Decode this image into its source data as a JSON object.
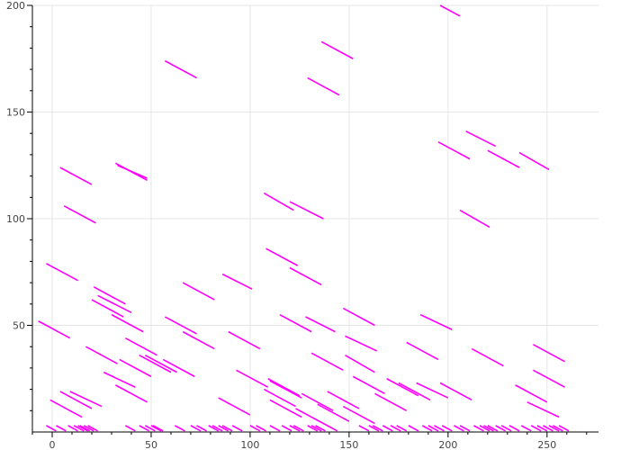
{
  "chart_data": {
    "type": "segment",
    "title": "",
    "xlabel": "",
    "ylabel": "",
    "xlim": [
      -10,
      276
    ],
    "ylim": [
      0,
      200
    ],
    "x_ticks": [
      0,
      50,
      100,
      150,
      200,
      250
    ],
    "y_ticks": [
      50,
      100,
      150,
      200
    ],
    "x_tick_labels": [
      "0",
      "50",
      "100",
      "150",
      "200",
      "250"
    ],
    "y_tick_labels": [
      "50",
      "100",
      "150",
      "200"
    ],
    "grid": true,
    "color": "#ff00ff",
    "segments": [
      {
        "x0": 196,
        "y0": 200,
        "x1": 206,
        "y1": 195
      },
      {
        "x0": 136,
        "y0": 183,
        "x1": 152,
        "y1": 175
      },
      {
        "x0": 57,
        "y0": 174,
        "x1": 73,
        "y1": 166
      },
      {
        "x0": 129,
        "y0": 166,
        "x1": 145,
        "y1": 158
      },
      {
        "x0": 209,
        "y0": 141,
        "x1": 224,
        "y1": 134
      },
      {
        "x0": 195,
        "y0": 136,
        "x1": 211,
        "y1": 128
      },
      {
        "x0": 220,
        "y0": 132,
        "x1": 236,
        "y1": 124
      },
      {
        "x0": 236,
        "y0": 131,
        "x1": 251,
        "y1": 123
      },
      {
        "x0": 32,
        "y0": 126,
        "x1": 48,
        "y1": 118
      },
      {
        "x0": 33,
        "y0": 125,
        "x1": 48,
        "y1": 119
      },
      {
        "x0": 4,
        "y0": 124,
        "x1": 20,
        "y1": 116
      },
      {
        "x0": 107,
        "y0": 112,
        "x1": 122,
        "y1": 104
      },
      {
        "x0": 120,
        "y0": 108,
        "x1": 137,
        "y1": 100
      },
      {
        "x0": 6,
        "y0": 106,
        "x1": 22,
        "y1": 98
      },
      {
        "x0": 206,
        "y0": 104,
        "x1": 221,
        "y1": 96
      },
      {
        "x0": 108,
        "y0": 86,
        "x1": 124,
        "y1": 78
      },
      {
        "x0": -3,
        "y0": 79,
        "x1": 13,
        "y1": 71
      },
      {
        "x0": 120,
        "y0": 77,
        "x1": 136,
        "y1": 69
      },
      {
        "x0": 86,
        "y0": 74,
        "x1": 101,
        "y1": 67
      },
      {
        "x0": 66,
        "y0": 70,
        "x1": 82,
        "y1": 62
      },
      {
        "x0": 21,
        "y0": 68,
        "x1": 37,
        "y1": 60
      },
      {
        "x0": 23,
        "y0": 64,
        "x1": 40,
        "y1": 56
      },
      {
        "x0": 20,
        "y0": 62,
        "x1": 36,
        "y1": 54
      },
      {
        "x0": 147,
        "y0": 58,
        "x1": 163,
        "y1": 50
      },
      {
        "x0": 186,
        "y0": 55,
        "x1": 202,
        "y1": 48
      },
      {
        "x0": 30,
        "y0": 55,
        "x1": 46,
        "y1": 47
      },
      {
        "x0": 115,
        "y0": 55,
        "x1": 131,
        "y1": 47
      },
      {
        "x0": 128,
        "y0": 54,
        "x1": 143,
        "y1": 47
      },
      {
        "x0": 57,
        "y0": 54,
        "x1": 73,
        "y1": 46
      },
      {
        "x0": -7,
        "y0": 52,
        "x1": 9,
        "y1": 44
      },
      {
        "x0": 66,
        "y0": 47,
        "x1": 82,
        "y1": 39
      },
      {
        "x0": 89,
        "y0": 47,
        "x1": 105,
        "y1": 39
      },
      {
        "x0": 148,
        "y0": 45,
        "x1": 164,
        "y1": 38
      },
      {
        "x0": 37,
        "y0": 44,
        "x1": 53,
        "y1": 36
      },
      {
        "x0": 179,
        "y0": 42,
        "x1": 195,
        "y1": 34
      },
      {
        "x0": 243,
        "y0": 41,
        "x1": 259,
        "y1": 33
      },
      {
        "x0": 17,
        "y0": 40,
        "x1": 33,
        "y1": 32
      },
      {
        "x0": 212,
        "y0": 39,
        "x1": 228,
        "y1": 31
      },
      {
        "x0": 131,
        "y0": 37,
        "x1": 147,
        "y1": 29
      },
      {
        "x0": 44,
        "y0": 36,
        "x1": 60,
        "y1": 28
      },
      {
        "x0": 47,
        "y0": 36,
        "x1": 63,
        "y1": 28
      },
      {
        "x0": 148,
        "y0": 36,
        "x1": 163,
        "y1": 28
      },
      {
        "x0": 34,
        "y0": 34,
        "x1": 50,
        "y1": 26
      },
      {
        "x0": 56,
        "y0": 34,
        "x1": 72,
        "y1": 26
      },
      {
        "x0": 93,
        "y0": 29,
        "x1": 109,
        "y1": 21
      },
      {
        "x0": 243,
        "y0": 29,
        "x1": 259,
        "y1": 21
      },
      {
        "x0": 26,
        "y0": 28,
        "x1": 42,
        "y1": 21
      },
      {
        "x0": 152,
        "y0": 26,
        "x1": 168,
        "y1": 18
      },
      {
        "x0": 109,
        "y0": 25,
        "x1": 125,
        "y1": 17
      },
      {
        "x0": 110,
        "y0": 24,
        "x1": 126,
        "y1": 16
      },
      {
        "x0": 169,
        "y0": 25,
        "x1": 185,
        "y1": 17
      },
      {
        "x0": 184,
        "y0": 23,
        "x1": 200,
        "y1": 16
      },
      {
        "x0": 196,
        "y0": 23,
        "x1": 212,
        "y1": 15
      },
      {
        "x0": 175,
        "y0": 23,
        "x1": 191,
        "y1": 15
      },
      {
        "x0": 234,
        "y0": 22,
        "x1": 250,
        "y1": 14
      },
      {
        "x0": 32,
        "y0": 22,
        "x1": 48,
        "y1": 14
      },
      {
        "x0": 107,
        "y0": 20,
        "x1": 123,
        "y1": 12
      },
      {
        "x0": 139,
        "y0": 19,
        "x1": 155,
        "y1": 11
      },
      {
        "x0": 4,
        "y0": 19,
        "x1": 20,
        "y1": 11
      },
      {
        "x0": 9,
        "y0": 19,
        "x1": 25,
        "y1": 12
      },
      {
        "x0": 163,
        "y0": 18,
        "x1": 179,
        "y1": 10
      },
      {
        "x0": 126,
        "y0": 18,
        "x1": 142,
        "y1": 10
      },
      {
        "x0": 84,
        "y0": 16,
        "x1": 100,
        "y1": 8
      },
      {
        "x0": 110,
        "y0": 15,
        "x1": 126,
        "y1": 7
      },
      {
        "x0": -1,
        "y0": 15,
        "x1": 15,
        "y1": 7
      },
      {
        "x0": 240,
        "y0": 14,
        "x1": 256,
        "y1": 7
      },
      {
        "x0": 134,
        "y0": 13,
        "x1": 150,
        "y1": 5
      },
      {
        "x0": 147,
        "y0": 12,
        "x1": 163,
        "y1": 4
      },
      {
        "x0": 123,
        "y0": 11,
        "x1": 139,
        "y1": 3
      }
    ],
    "bottom_dashes_x": [
      -3,
      2,
      8,
      11,
      13,
      14,
      16,
      18,
      37,
      44,
      47,
      50,
      51,
      62,
      70,
      73,
      79,
      81,
      84,
      86,
      91,
      100,
      103,
      110,
      116,
      120,
      122,
      129,
      131,
      133,
      139,
      155,
      160,
      162,
      167,
      171,
      174,
      180,
      187,
      190,
      193,
      197,
      203,
      206,
      213,
      216,
      218,
      220,
      224,
      227,
      231,
      237,
      242,
      245,
      248,
      251,
      253,
      256
    ]
  }
}
